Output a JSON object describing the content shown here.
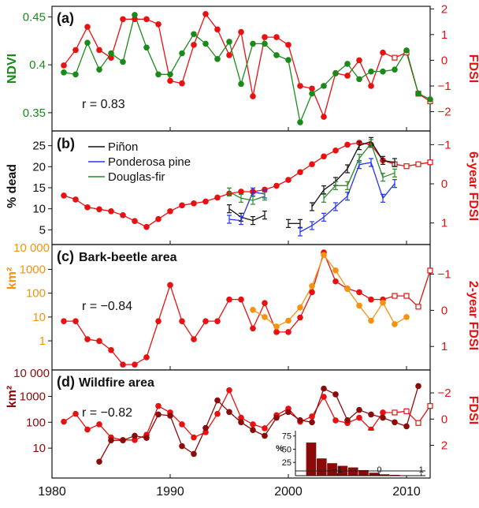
{
  "colors": {
    "ndvi": "#1a8a1a",
    "fdsi": "#e81010",
    "pinon": "#111111",
    "ponderosa": "#2233ee",
    "douglas": "#2a8a2a",
    "bark": "#f5930f",
    "wildfire": "#8b0a0a",
    "axis": "#111111"
  },
  "chart_data": [
    {
      "panel": "a",
      "type": "line",
      "label": "(a)",
      "annotation": "r = 0.83",
      "xlim": [
        1980,
        2012
      ],
      "left_axis": {
        "label": "NDVI",
        "ticks": [
          "0.35",
          "0.4",
          "0.45"
        ],
        "ylim": [
          0.331,
          0.461
        ]
      },
      "right_axis": {
        "label": "FDSI",
        "ticks": [
          "2",
          "1",
          "0",
          "−1",
          "−2"
        ],
        "ylim": [
          -2.75,
          2.1
        ]
      },
      "series": [
        {
          "role": "ndvi",
          "axis": "left",
          "x": [
            1981,
            1982,
            1983,
            1984,
            1985,
            1986,
            1987,
            1988,
            1989,
            1990,
            1991,
            1992,
            1993,
            1994,
            1995,
            1996,
            1997,
            1998,
            1999,
            2000,
            2001,
            2002,
            2003,
            2004,
            2005,
            2006,
            2007,
            2008,
            2009,
            2010,
            2011,
            2012
          ],
          "y": [
            0.392,
            0.39,
            0.423,
            0.395,
            0.412,
            0.403,
            0.452,
            0.418,
            0.39,
            0.39,
            0.412,
            0.432,
            0.422,
            0.406,
            0.424,
            0.38,
            0.422,
            0.422,
            0.41,
            0.405,
            0.34,
            0.37,
            0.378,
            0.391,
            0.401,
            0.385,
            0.393,
            0.393,
            0.395,
            0.415,
            0.37,
            0.364
          ]
        },
        {
          "role": "fdsi",
          "axis": "right",
          "x": [
            1981,
            1982,
            1983,
            1984,
            1985,
            1986,
            1987,
            1988,
            1989,
            1990,
            1991,
            1992,
            1993,
            1994,
            1995,
            1996,
            1997,
            1998,
            1999,
            2000,
            2001,
            2002,
            2003,
            2004,
            2005,
            2006,
            2007,
            2008,
            2009,
            2010,
            2011,
            2012
          ],
          "y": [
            -0.2,
            0.4,
            1.3,
            0.4,
            0.1,
            1.6,
            1.6,
            1.6,
            1.4,
            -0.8,
            -0.9,
            0.6,
            1.8,
            1.2,
            0.2,
            1.1,
            -1.4,
            0.9,
            0.9,
            0.6,
            -1.0,
            -1.1,
            -2.2,
            -0.5,
            -0.6,
            0.0,
            -1.0,
            0.3,
            0.1,
            0.3,
            -1.3,
            -1.6
          ],
          "hollow_from": 2009
        }
      ]
    },
    {
      "panel": "b",
      "type": "line",
      "label": "(b)",
      "xlim": [
        1980,
        2012
      ],
      "left_axis": {
        "label": "% dead",
        "ticks": [
          "5",
          "10",
          "15",
          "20",
          "25"
        ],
        "ylim": [
          1.5,
          28.5
        ]
      },
      "right_axis": {
        "label": "6-year FDSI",
        "ticks": [
          "−1",
          "0",
          "1"
        ],
        "ylim": [
          1.55,
          -1.35
        ]
      },
      "legend": [
        "Piñon",
        "Ponderosa pine",
        "Douglas-fir"
      ],
      "series": [
        {
          "role": "fdsi",
          "axis": "right",
          "x": [
            1981,
            1982,
            1983,
            1984,
            1985,
            1986,
            1987,
            1988,
            1989,
            1990,
            1991,
            1992,
            1993,
            1994,
            1995,
            1996,
            1997,
            1998,
            1999,
            2000,
            2001,
            2002,
            2003,
            2004,
            2005,
            2006,
            2007,
            2008,
            2009,
            2010,
            2011,
            2012
          ],
          "y": [
            0.3,
            0.4,
            0.6,
            0.65,
            0.7,
            0.8,
            0.95,
            1.1,
            0.9,
            0.7,
            0.55,
            0.5,
            0.45,
            0.35,
            0.25,
            0.2,
            0.2,
            0.15,
            0.05,
            -0.1,
            -0.3,
            -0.5,
            -0.7,
            -0.85,
            -1.0,
            -1.05,
            -1.0,
            -0.6,
            -0.5,
            -0.45,
            -0.5,
            -0.55
          ],
          "hollow_from": 2009
        },
        {
          "role": "pinon",
          "axis": "left",
          "name": "Piñon",
          "segments": [
            {
              "x": [
                1995,
                1996,
                1997,
                1998
              ],
              "y": [
                10.0,
                8.0,
                7.2,
                8.5
              ]
            },
            {
              "x": [
                2000,
                2001
              ],
              "y": [
                6.5,
                6.5
              ]
            },
            {
              "x": [
                2002,
                2003,
                2004,
                2005,
                2006,
                2007,
                2008,
                2009
              ],
              "y": [
                10.5,
                14.5,
                16.5,
                19.5,
                25.0,
                26.0,
                21.5,
                21.0
              ]
            }
          ]
        },
        {
          "role": "ponderosa",
          "axis": "left",
          "name": "Ponderosa pine",
          "segments": [
            {
              "x": [
                1995,
                1996,
                1997,
                1998
              ],
              "y": [
                7.5,
                7.2,
                14.0,
                13.5
              ]
            },
            {
              "x": [
                2001,
                2002,
                2003,
                2004,
                2005,
                2006,
                2007,
                2008,
                2009
              ],
              "y": [
                4.5,
                6.0,
                8.0,
                10.5,
                13.0,
                20.5,
                21.0,
                12.5,
                16.0
              ]
            }
          ]
        },
        {
          "role": "douglas",
          "axis": "left",
          "name": "Douglas-fir",
          "segments": [
            {
              "x": [
                1995,
                1996,
                1997,
                1998
              ],
              "y": [
                14.0,
                12.5,
                12.0,
                13.0
              ]
            },
            {
              "x": [
                2003,
                2004,
                2005,
                2006,
                2007,
                2008,
                2009
              ],
              "y": [
                12.5,
                15.5,
                15.5,
                22.0,
                25.5,
                17.5,
                18.5
              ]
            }
          ]
        }
      ]
    },
    {
      "panel": "c",
      "type": "line",
      "label": "(c)",
      "title": "Bark-beetle area",
      "annotation": "r = −0.84",
      "xlim": [
        1980,
        2012
      ],
      "left_axis": {
        "label": "km²",
        "scale": "log",
        "ticks": [
          "1",
          "10",
          "100",
          "1000",
          "10 000"
        ],
        "ylim": [
          0.06,
          11000
        ]
      },
      "right_axis": {
        "label": "2-year FDSI",
        "ticks": [
          "−1",
          "0",
          "1"
        ],
        "ylim": [
          1.65,
          -1.82
        ]
      },
      "series": [
        {
          "role": "fdsi",
          "axis": "right",
          "x": [
            1981,
            1982,
            1983,
            1984,
            1985,
            1986,
            1987,
            1988,
            1989,
            1990,
            1991,
            1992,
            1993,
            1994,
            1995,
            1996,
            1997,
            1998,
            1999,
            2000,
            2001,
            2002,
            2003,
            2004,
            2005,
            2006,
            2007,
            2008,
            2009,
            2010,
            2011,
            2012
          ],
          "y": [
            0.3,
            0.3,
            0.8,
            0.85,
            1.1,
            1.5,
            1.5,
            1.3,
            0.3,
            -0.7,
            0.3,
            0.8,
            0.3,
            0.3,
            -0.3,
            -0.3,
            0.5,
            -0.2,
            0.6,
            0.6,
            0.2,
            -0.5,
            -1.6,
            -0.8,
            -0.6,
            -0.5,
            -0.3,
            -0.3,
            -0.4,
            -0.4,
            -0.1,
            -1.1
          ],
          "hollow_from": 2009
        },
        {
          "role": "bark",
          "axis": "left",
          "x": [
            1997,
            1998,
            1999,
            2000,
            2001,
            2002,
            2003,
            2004,
            2005,
            2006,
            2007,
            2008,
            2009,
            2010
          ],
          "y": [
            20,
            10,
            4,
            7,
            25,
            200,
            4000,
            900,
            150,
            30,
            7,
            40,
            5,
            10
          ]
        }
      ]
    },
    {
      "panel": "d",
      "type": "line",
      "label": "(d)",
      "title": "Wildfire area",
      "annotation": "r = −0.82",
      "xlim": [
        1980,
        2012
      ],
      "left_axis": {
        "label": "km²",
        "scale": "log",
        "ticks": [
          "10",
          "100",
          "1000",
          "10 000"
        ],
        "ylim": [
          0.7,
          10500
        ]
      },
      "right_axis": {
        "label": "FDSI",
        "ticks": [
          "−2",
          "0",
          "2"
        ],
        "ylim": [
          4.5,
          -3.75
        ]
      },
      "series": [
        {
          "role": "fdsi",
          "axis": "right",
          "x": [
            1981,
            1982,
            1983,
            1984,
            1985,
            1986,
            1987,
            1988,
            1989,
            1990,
            1991,
            1992,
            1993,
            1994,
            1995,
            1996,
            1997,
            1998,
            1999,
            2000,
            2001,
            2002,
            2003,
            2004,
            2005,
            2006,
            2007,
            2008,
            2009,
            2010,
            2011,
            2012
          ],
          "y": [
            0.2,
            -0.4,
            0.8,
            0.4,
            1.4,
            1.6,
            1.6,
            1.2,
            -1.0,
            -0.5,
            0.4,
            1.4,
            1.0,
            -0.4,
            -2.2,
            -0.1,
            0.4,
            0.7,
            -0.3,
            -0.8,
            0.2,
            -0.2,
            -1.7,
            0.1,
            0.3,
            -0.1,
            0.8,
            -0.5,
            -0.5,
            -0.6,
            0.3,
            -1.0
          ],
          "hollow_from": 2009
        },
        {
          "role": "wildfire",
          "axis": "left",
          "x": [
            1984,
            1985,
            1986,
            1987,
            1988,
            1989,
            1990,
            1991,
            1992,
            1993,
            1994,
            1995,
            1996,
            1997,
            1998,
            1999,
            2000,
            2001,
            2002,
            2003,
            2004,
            2005,
            2006,
            2007,
            2008,
            2009,
            2010,
            2011
          ],
          "y": [
            3,
            20,
            20,
            30,
            25,
            200,
            180,
            12,
            6,
            60,
            700,
            250,
            100,
            50,
            30,
            150,
            250,
            120,
            100,
            2000,
            1200,
            120,
            300,
            200,
            150,
            100,
            70,
            2500
          ]
        }
      ],
      "inset": {
        "type": "bar",
        "ylabel": "%",
        "yticks": [
          "25",
          "50",
          "75"
        ],
        "ylim": [
          0,
          85
        ],
        "xticks": [
          "−1",
          "0",
          "1"
        ],
        "xlim": [
          -2,
          1.1
        ],
        "bin_start": -2,
        "bin_width": 0.25,
        "values": [
          0,
          63,
          33,
          24,
          19,
          16,
          11,
          6,
          3,
          2,
          1,
          1
        ],
        "overlay_value": 9
      }
    }
  ],
  "x_axis": {
    "ticks": [
      "1980",
      "1990",
      "2000",
      "2010"
    ],
    "values": [
      1980,
      1990,
      2000,
      2010
    ]
  }
}
